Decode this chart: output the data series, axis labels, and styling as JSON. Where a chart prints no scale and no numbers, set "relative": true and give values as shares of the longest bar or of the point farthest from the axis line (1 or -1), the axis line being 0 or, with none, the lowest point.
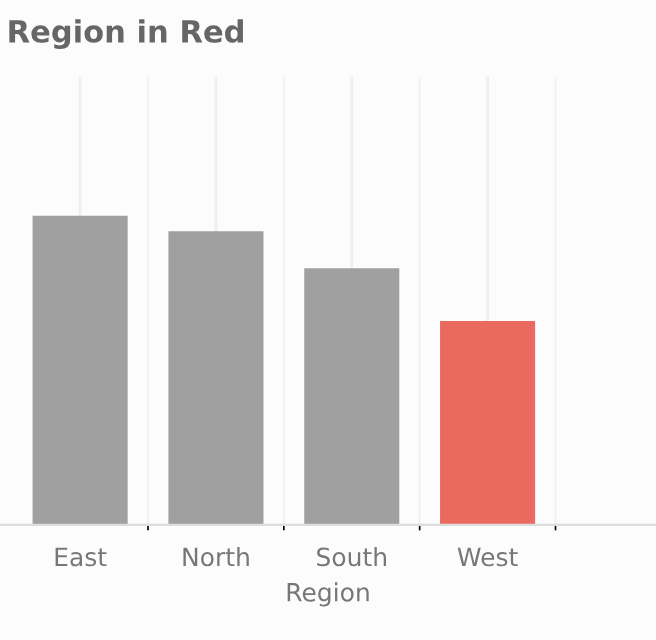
{
  "chart_data": {
    "type": "bar",
    "title": "Region in Red",
    "xlabel": "Region",
    "categories": [
      "East",
      "North",
      "South",
      "West"
    ],
    "values": [
      1,
      0.95,
      0.83,
      0.66
    ],
    "colors": [
      "#a0a0a0",
      "#a0a0a0",
      "#a0a0a0",
      "#eb6a5f"
    ],
    "relative": true,
    "grid": true
  }
}
